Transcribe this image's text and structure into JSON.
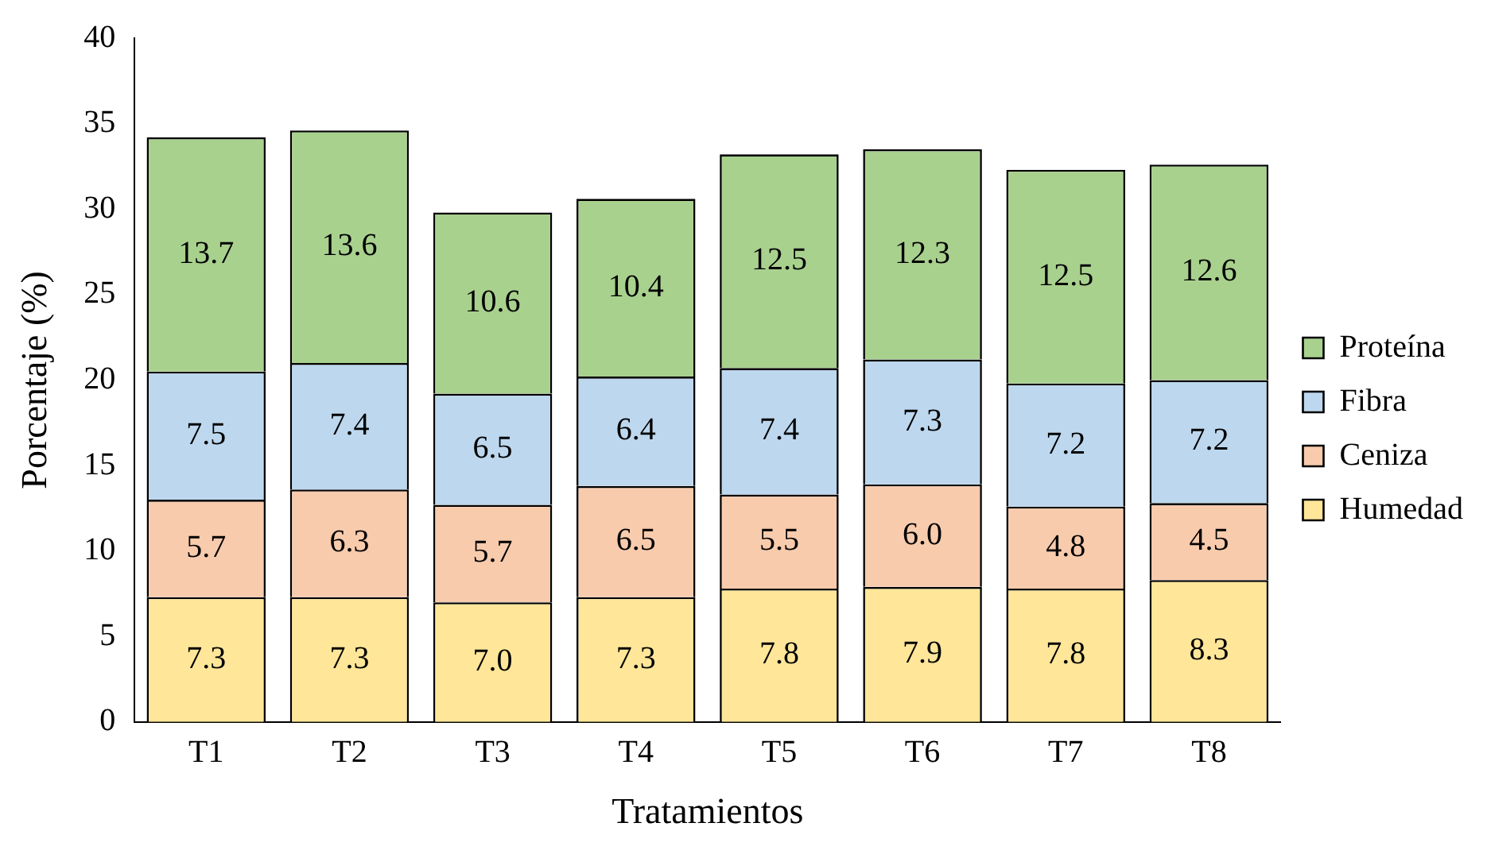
{
  "chart_data": {
    "type": "bar",
    "stacked": true,
    "xlabel": "Tratamientos",
    "ylabel": "Porcentaje (%)",
    "categories": [
      "T1",
      "T2",
      "T3",
      "T4",
      "T5",
      "T6",
      "T7",
      "T8"
    ],
    "ylim": [
      0,
      40
    ],
    "yticks": [
      0,
      5,
      10,
      15,
      20,
      25,
      30,
      35,
      40
    ],
    "grid": false,
    "legend": "right",
    "series": [
      {
        "name": "Humedad",
        "color": "#ffe699",
        "values": [
          7.3,
          7.3,
          7.0,
          7.3,
          7.8,
          7.9,
          7.8,
          8.3
        ],
        "value_labels": [
          "7.3",
          "7.3",
          "7.0",
          "7.3",
          "7.8",
          "7.9",
          "7.8",
          "8.3"
        ]
      },
      {
        "name": "Ceniza",
        "color": "#f8cbad",
        "values": [
          5.7,
          6.3,
          5.7,
          6.5,
          5.5,
          6.0,
          4.8,
          4.5
        ],
        "value_labels": [
          "5.7",
          "6.3",
          "5.7",
          "6.5",
          "5.5",
          "6.0",
          "4.8",
          "4.5"
        ]
      },
      {
        "name": "Fibra",
        "color": "#bdd7ee",
        "values": [
          7.5,
          7.4,
          6.5,
          6.4,
          7.4,
          7.3,
          7.2,
          7.2
        ],
        "value_labels": [
          "7.5",
          "7.4",
          "6.5",
          "6.4",
          "7.4",
          "7.3",
          "7.2",
          "7.2"
        ]
      },
      {
        "name": "Proteína",
        "color": "#a9d18e",
        "values": [
          13.7,
          13.6,
          10.6,
          10.4,
          12.5,
          12.3,
          12.5,
          12.6
        ],
        "value_labels": [
          "13.7",
          "13.6",
          "10.6",
          "10.4",
          "12.5",
          "12.3",
          "12.5",
          "12.6"
        ]
      }
    ]
  }
}
